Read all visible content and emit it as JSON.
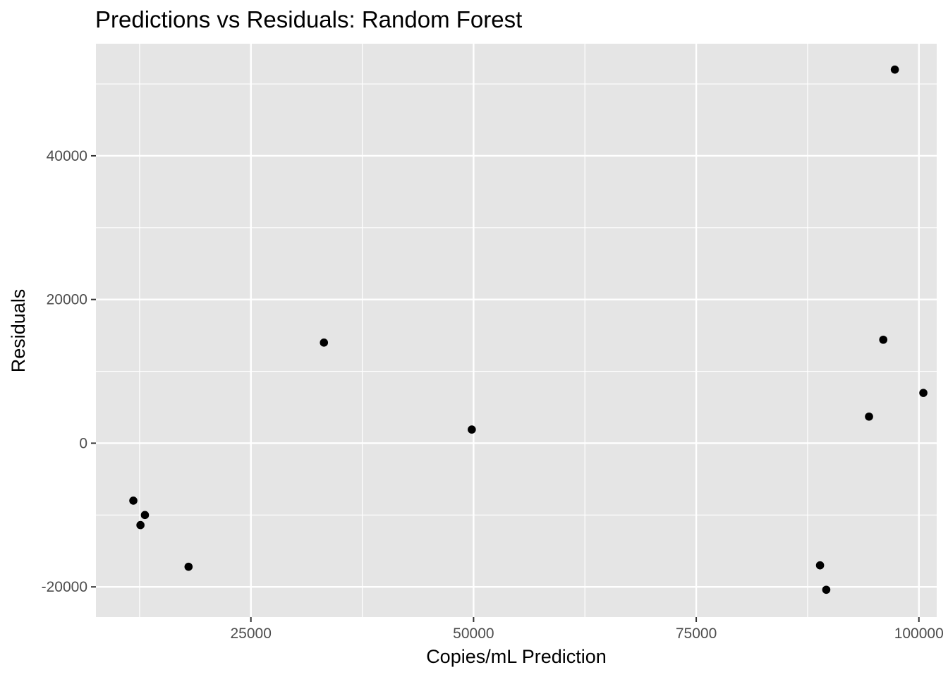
{
  "chart_data": {
    "type": "scatter",
    "title": "Predictions vs Residuals: Random Forest",
    "xlabel": "Copies/mL Prediction",
    "ylabel": "Residuals",
    "xlim": [
      7600,
      102000
    ],
    "ylim": [
      -24200,
      55600
    ],
    "x_ticks": [
      25000,
      50000,
      75000,
      100000
    ],
    "x_tick_labels": [
      "25000",
      "50000",
      "75000",
      "100000"
    ],
    "y_ticks": [
      -20000,
      0,
      20000,
      40000
    ],
    "y_tick_labels": [
      "-20000",
      "0",
      "20000",
      "40000"
    ],
    "x_minor": [
      12500,
      37500,
      62500,
      87500
    ],
    "y_minor": [
      -10000,
      10000,
      30000,
      50000
    ],
    "grid": true,
    "panel_background": "#e5e5e5",
    "grid_color": "#ffffff",
    "point_color": "#000000",
    "points": [
      {
        "x": 11800,
        "y": -8000
      },
      {
        "x": 12600,
        "y": -11400
      },
      {
        "x": 13100,
        "y": -10000
      },
      {
        "x": 18000,
        "y": -17200
      },
      {
        "x": 33200,
        "y": 14000
      },
      {
        "x": 49800,
        "y": 1900
      },
      {
        "x": 88900,
        "y": -17000
      },
      {
        "x": 89600,
        "y": -20400
      },
      {
        "x": 94400,
        "y": 3700
      },
      {
        "x": 96000,
        "y": 14400
      },
      {
        "x": 97300,
        "y": 52000
      },
      {
        "x": 100500,
        "y": 7000
      }
    ]
  }
}
